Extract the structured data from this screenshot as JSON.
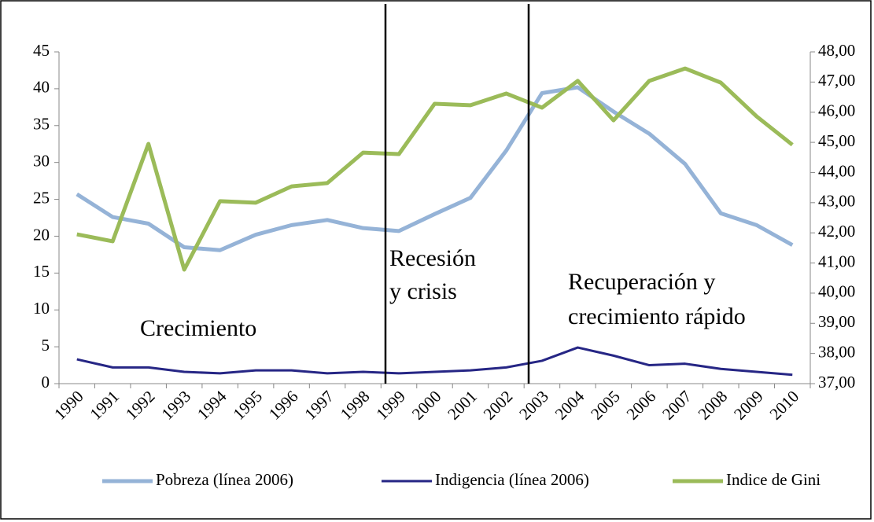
{
  "chart_data": {
    "type": "line",
    "categories": [
      "1990",
      "1991",
      "1992",
      "1993",
      "1994",
      "1995",
      "1996",
      "1997",
      "1998",
      "1999",
      "2000",
      "2001",
      "2002",
      "2003",
      "2004",
      "2005",
      "2006",
      "2007",
      "2008",
      "2009",
      "2010"
    ],
    "series": [
      {
        "name": "Pobreza (línea 2006)",
        "color": "#95b3d7",
        "values": [
          25.7,
          22.6,
          21.7,
          18.5,
          18.1,
          20.2,
          21.5,
          22.2,
          21.1,
          20.7,
          23.0,
          25.2,
          31.6,
          39.4,
          40.2,
          36.9,
          33.9,
          29.8,
          23.1,
          21.5,
          18.8
        ]
      },
      {
        "name": "Indigencia (línea 2006)",
        "color": "#262685",
        "values": [
          3.3,
          2.2,
          2.2,
          1.6,
          1.4,
          1.8,
          1.8,
          1.4,
          1.6,
          1.4,
          1.6,
          1.8,
          2.2,
          3.1,
          4.9,
          3.8,
          2.5,
          2.7,
          2.0,
          1.6,
          1.2
        ]
      },
      {
        "name": "Indice de Gini",
        "color": "#9bbb59",
        "axis": "y2",
        "values": [
          41.95,
          41.72,
          44.95,
          40.78,
          43.05,
          43.0,
          43.54,
          43.65,
          44.66,
          44.61,
          46.28,
          46.23,
          46.62,
          46.15,
          47.04,
          45.73,
          47.04,
          47.45,
          46.98,
          45.86,
          44.92
        ]
      }
    ],
    "ylim": [
      0,
      45
    ],
    "yticks": [
      0,
      5,
      10,
      15,
      20,
      25,
      30,
      35,
      40,
      45
    ],
    "y2lim": [
      37,
      48
    ],
    "y2ticks": [
      {
        "value": 37,
        "label": "37,00"
      },
      {
        "value": 38,
        "label": "38,00"
      },
      {
        "value": 39,
        "label": "39,00"
      },
      {
        "value": 40,
        "label": "40,00"
      },
      {
        "value": 41,
        "label": "41,00"
      },
      {
        "value": 42,
        "label": "42,00"
      },
      {
        "value": 43,
        "label": "43,00"
      },
      {
        "value": 44,
        "label": "44,00"
      },
      {
        "value": 45,
        "label": "45,00"
      },
      {
        "value": 46,
        "label": "46,00"
      },
      {
        "value": 47,
        "label": "47,00"
      },
      {
        "value": 48,
        "label": "48,00"
      }
    ],
    "annotations": [
      "Crecimiento",
      "Recesión",
      "y crisis",
      "Recuperación y",
      "crecimiento rápido"
    ],
    "grid": false,
    "legend": "bottom"
  }
}
